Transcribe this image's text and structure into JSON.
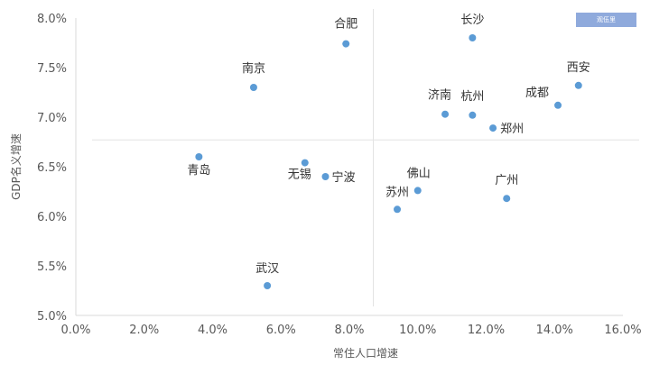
{
  "badge": {
    "text": "观伍里"
  },
  "chart_data": {
    "type": "scatter",
    "title": "",
    "xlabel": "常住人口增速",
    "ylabel": "GDP名义增速",
    "xlim": [
      0,
      16
    ],
    "ylim": [
      5,
      8
    ],
    "x_ticks": [
      "0.0%",
      "2.0%",
      "4.0%",
      "6.0%",
      "8.0%",
      "10.0%",
      "12.0%",
      "14.0%",
      "16.0%"
    ],
    "y_ticks": [
      "5.0%",
      "5.5%",
      "6.0%",
      "6.5%",
      "7.0%",
      "7.5%",
      "8.0%"
    ],
    "reference_lines": {
      "x": 8.7,
      "y": 6.77
    },
    "grid": false,
    "color": "#5b9bd5",
    "points": [
      {
        "label": "合肥",
        "x": 7.9,
        "y": 7.74
      },
      {
        "label": "长沙",
        "x": 11.6,
        "y": 7.8
      },
      {
        "label": "南京",
        "x": 5.2,
        "y": 7.3
      },
      {
        "label": "西安",
        "x": 14.7,
        "y": 7.32
      },
      {
        "label": "成都",
        "x": 14.1,
        "y": 7.12
      },
      {
        "label": "济南",
        "x": 10.8,
        "y": 7.03
      },
      {
        "label": "杭州",
        "x": 11.6,
        "y": 7.02
      },
      {
        "label": "郑州",
        "x": 12.2,
        "y": 6.89
      },
      {
        "label": "青岛",
        "x": 3.6,
        "y": 6.6
      },
      {
        "label": "无锡",
        "x": 6.7,
        "y": 6.54
      },
      {
        "label": "宁波",
        "x": 7.3,
        "y": 6.4
      },
      {
        "label": "佛山",
        "x": 10.0,
        "y": 6.26
      },
      {
        "label": "广州",
        "x": 12.6,
        "y": 6.18
      },
      {
        "label": "苏州",
        "x": 9.4,
        "y": 6.07
      },
      {
        "label": "武汉",
        "x": 5.6,
        "y": 5.3
      }
    ]
  }
}
